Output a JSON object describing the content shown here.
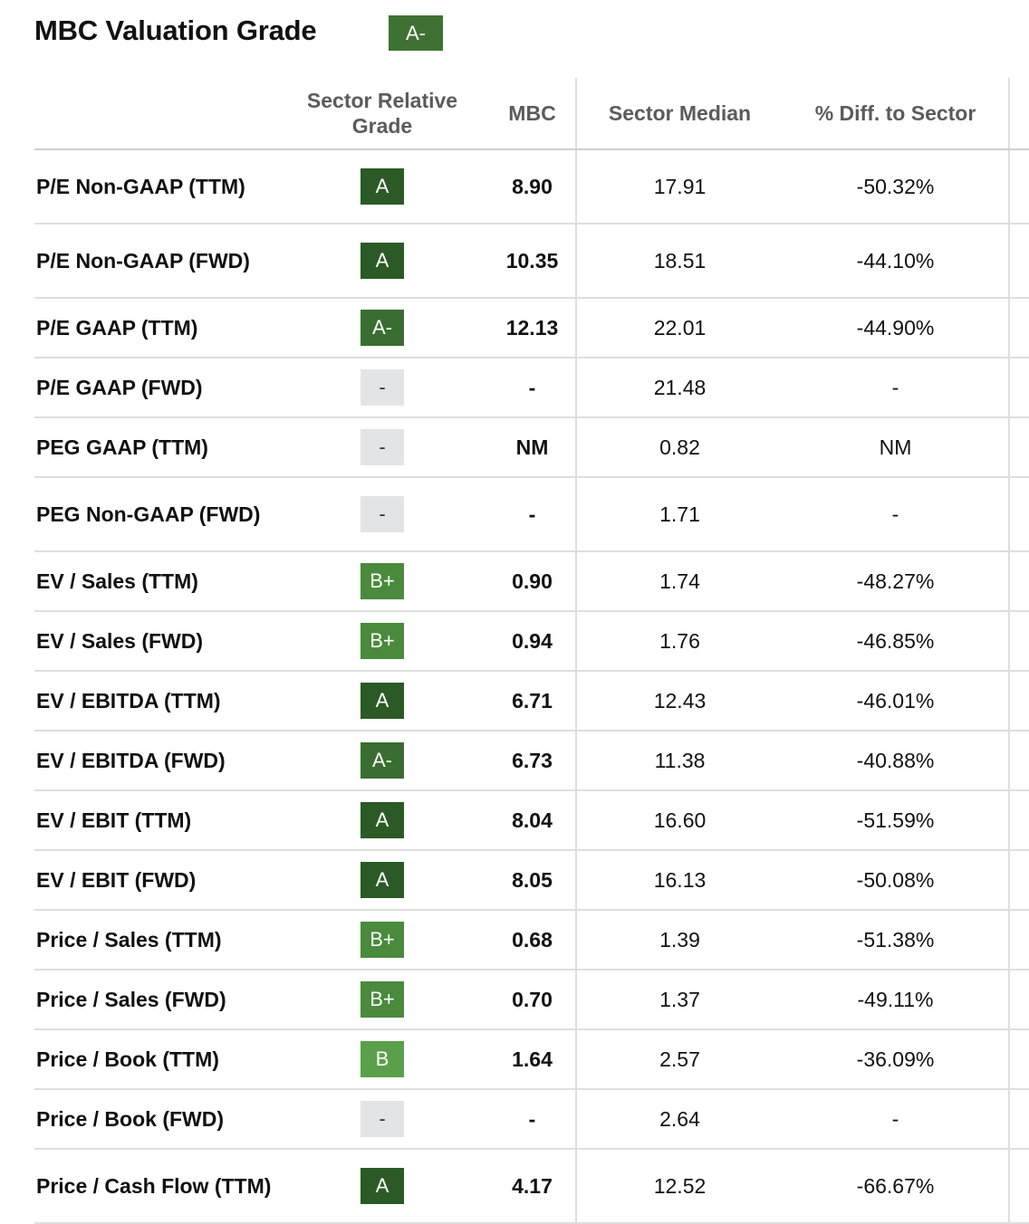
{
  "header": {
    "title": "MBC Valuation Grade",
    "overall_grade": "A-"
  },
  "columns": {
    "metric": "",
    "grade_line1": "Sector Relative",
    "grade_line2": "Grade",
    "mbc": "MBC",
    "sector_median": "Sector Median",
    "diff": "% Diff. to Sector"
  },
  "colors": {
    "A": "#2b5a26",
    "A-": "#3a6d31",
    "B+": "#4a8a3c",
    "B": "#5aa04a",
    "-": "#e3e4e6"
  },
  "rows": [
    {
      "metric": "P/E Non-GAAP (TTM)",
      "grade": "A",
      "mbc": "8.90",
      "median": "17.91",
      "diff": "-50.32%"
    },
    {
      "metric": "P/E Non-GAAP (FWD)",
      "grade": "A",
      "mbc": "10.35",
      "median": "18.51",
      "diff": "-44.10%"
    },
    {
      "metric": "P/E GAAP (TTM)",
      "grade": "A-",
      "mbc": "12.13",
      "median": "22.01",
      "diff": "-44.90%"
    },
    {
      "metric": "P/E GAAP (FWD)",
      "grade": "-",
      "mbc": "-",
      "median": "21.48",
      "diff": "-"
    },
    {
      "metric": "PEG GAAP (TTM)",
      "grade": "-",
      "mbc": "NM",
      "median": "0.82",
      "diff": "NM"
    },
    {
      "metric": "PEG Non-GAAP (FWD)",
      "grade": "-",
      "mbc": "-",
      "median": "1.71",
      "diff": "-"
    },
    {
      "metric": "EV / Sales (TTM)",
      "grade": "B+",
      "mbc": "0.90",
      "median": "1.74",
      "diff": "-48.27%"
    },
    {
      "metric": "EV / Sales (FWD)",
      "grade": "B+",
      "mbc": "0.94",
      "median": "1.76",
      "diff": "-46.85%"
    },
    {
      "metric": "EV / EBITDA (TTM)",
      "grade": "A",
      "mbc": "6.71",
      "median": "12.43",
      "diff": "-46.01%"
    },
    {
      "metric": "EV / EBITDA (FWD)",
      "grade": "A-",
      "mbc": "6.73",
      "median": "11.38",
      "diff": "-40.88%"
    },
    {
      "metric": "EV / EBIT (TTM)",
      "grade": "A",
      "mbc": "8.04",
      "median": "16.60",
      "diff": "-51.59%"
    },
    {
      "metric": "EV / EBIT (FWD)",
      "grade": "A",
      "mbc": "8.05",
      "median": "16.13",
      "diff": "-50.08%"
    },
    {
      "metric": "Price / Sales (TTM)",
      "grade": "B+",
      "mbc": "0.68",
      "median": "1.39",
      "diff": "-51.38%"
    },
    {
      "metric": "Price / Sales (FWD)",
      "grade": "B+",
      "mbc": "0.70",
      "median": "1.37",
      "diff": "-49.11%"
    },
    {
      "metric": "Price / Book (TTM)",
      "grade": "B",
      "mbc": "1.64",
      "median": "2.57",
      "diff": "-36.09%"
    },
    {
      "metric": "Price / Book (FWD)",
      "grade": "-",
      "mbc": "-",
      "median": "2.64",
      "diff": "-"
    },
    {
      "metric": "Price / Cash Flow (TTM)",
      "grade": "A",
      "mbc": "4.17",
      "median": "12.52",
      "diff": "-66.67%"
    }
  ]
}
